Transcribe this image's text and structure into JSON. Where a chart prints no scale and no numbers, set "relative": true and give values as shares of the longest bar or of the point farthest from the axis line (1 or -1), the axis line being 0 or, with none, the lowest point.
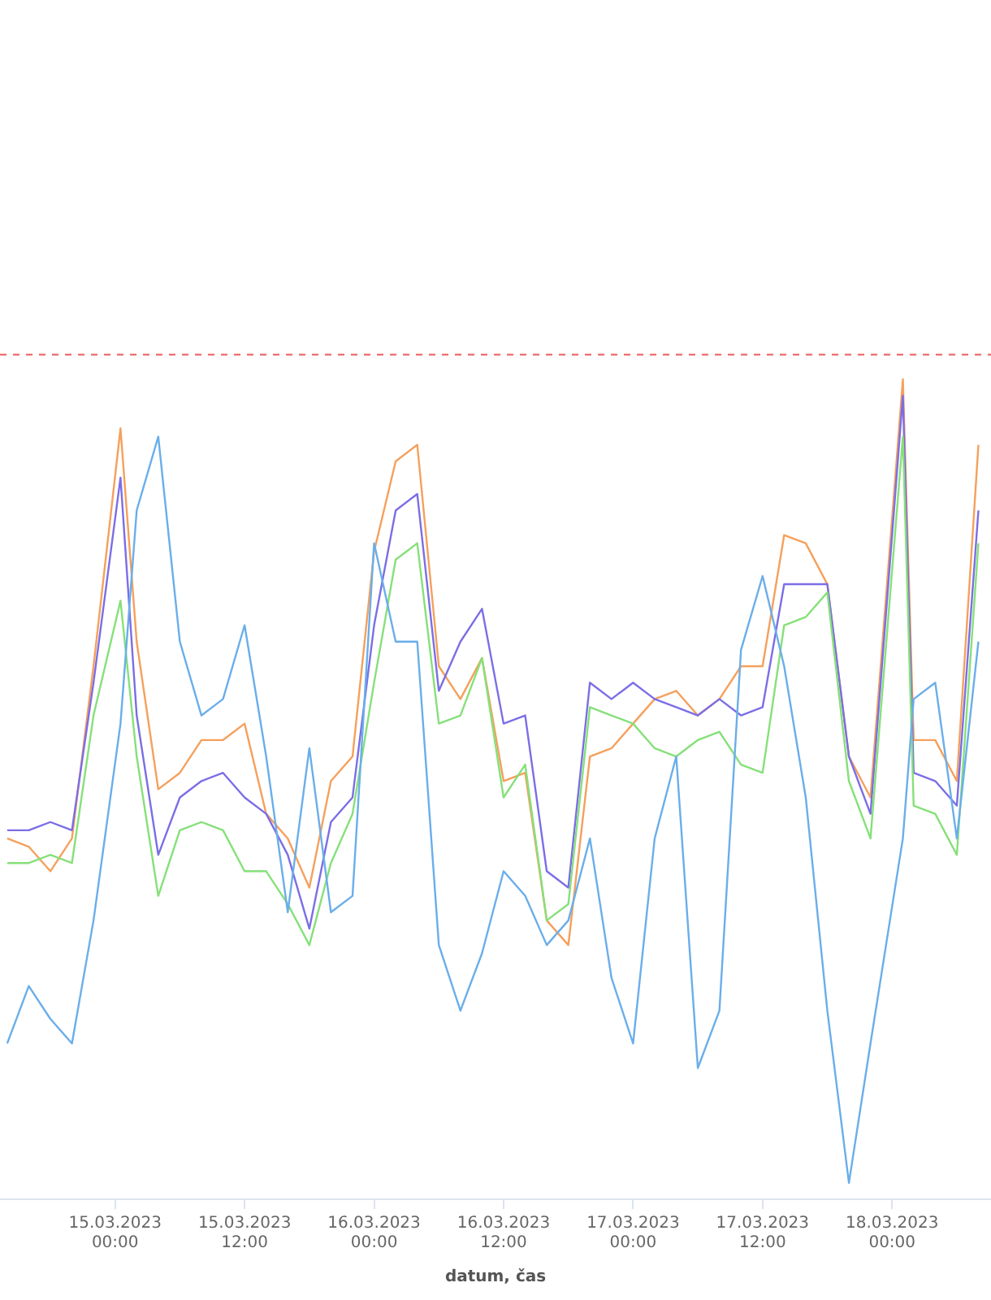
{
  "chart_data": {
    "type": "line",
    "xlabel": "datum, čas",
    "relative": true,
    "marker": "none",
    "x": [
      "2023-03-14T14:00",
      "2023-03-14T16:00",
      "2023-03-14T18:00",
      "2023-03-14T20:00",
      "2023-03-14T22:00",
      "2023-03-15T00:30",
      "2023-03-15T02:00",
      "2023-03-15T04:00",
      "2023-03-15T06:00",
      "2023-03-15T08:00",
      "2023-03-15T10:00",
      "2023-03-15T12:00",
      "2023-03-15T14:00",
      "2023-03-15T16:00",
      "2023-03-15T18:00",
      "2023-03-15T20:00",
      "2023-03-15T22:00",
      "2023-03-16T00:00",
      "2023-03-16T02:00",
      "2023-03-16T04:00",
      "2023-03-16T06:00",
      "2023-03-16T08:00",
      "2023-03-16T10:00",
      "2023-03-16T12:00",
      "2023-03-16T14:00",
      "2023-03-16T16:00",
      "2023-03-16T18:00",
      "2023-03-16T20:00",
      "2023-03-16T22:00",
      "2023-03-17T00:00",
      "2023-03-17T02:00",
      "2023-03-17T04:00",
      "2023-03-17T06:00",
      "2023-03-17T08:00",
      "2023-03-17T10:00",
      "2023-03-17T12:00",
      "2023-03-17T14:00",
      "2023-03-17T16:00",
      "2023-03-17T18:00",
      "2023-03-17T20:00",
      "2023-03-17T22:00",
      "2023-03-18T01:00",
      "2023-03-18T02:00",
      "2023-03-18T04:00",
      "2023-03-18T06:00",
      "2023-03-18T08:00"
    ],
    "xlim": [
      "2023-03-14T13:20",
      "2023-03-18T09:10"
    ],
    "xticks": [
      {
        "value": "2023-03-15T00:00",
        "label": "15.03.2023 00:00"
      },
      {
        "value": "2023-03-15T12:00",
        "label": "15.03.2023 12:00"
      },
      {
        "value": "2023-03-16T00:00",
        "label": "16.03.2023 00:00"
      },
      {
        "value": "2023-03-16T12:00",
        "label": "16.03.2023 12:00"
      },
      {
        "value": "2023-03-17T00:00",
        "label": "17.03.2023 00:00"
      },
      {
        "value": "2023-03-17T12:00",
        "label": "17.03.2023 12:00"
      },
      {
        "value": "2023-03-18T00:00",
        "label": "18.03.2023 00:00"
      }
    ],
    "series": [
      {
        "color": "#6aaeea",
        "values": [
          0.19,
          0.26,
          0.22,
          0.19,
          0.34,
          0.58,
          0.84,
          0.93,
          0.68,
          0.59,
          0.61,
          0.7,
          0.54,
          0.35,
          0.55,
          0.35,
          0.37,
          0.8,
          0.68,
          0.68,
          0.31,
          0.23,
          0.3,
          0.4,
          0.37,
          0.31,
          0.34,
          0.44,
          0.27,
          0.19,
          0.44,
          0.54,
          0.16,
          0.23,
          0.67,
          0.76,
          0.65,
          0.49,
          0.23,
          0.02,
          0.19,
          0.44,
          0.61,
          0.63,
          0.44,
          0.68
        ]
      },
      {
        "color": "#86e07a",
        "values": [
          0.41,
          0.41,
          0.42,
          0.41,
          0.59,
          0.73,
          0.54,
          0.37,
          0.45,
          0.46,
          0.45,
          0.4,
          0.4,
          0.36,
          0.31,
          0.41,
          0.47,
          0.63,
          0.78,
          0.8,
          0.58,
          0.59,
          0.66,
          0.49,
          0.53,
          0.34,
          0.36,
          0.6,
          0.59,
          0.58,
          0.55,
          0.54,
          0.56,
          0.57,
          0.53,
          0.52,
          0.7,
          0.71,
          0.74,
          0.51,
          0.44,
          0.93,
          0.48,
          0.47,
          0.42,
          0.8
        ]
      },
      {
        "color": "#7b6ee6",
        "values": [
          0.45,
          0.45,
          0.46,
          0.45,
          0.63,
          0.88,
          0.59,
          0.42,
          0.49,
          0.51,
          0.52,
          0.49,
          0.47,
          0.42,
          0.33,
          0.46,
          0.49,
          0.7,
          0.84,
          0.86,
          0.62,
          0.68,
          0.72,
          0.58,
          0.59,
          0.4,
          0.38,
          0.63,
          0.61,
          0.63,
          0.61,
          0.6,
          0.59,
          0.61,
          0.59,
          0.6,
          0.75,
          0.75,
          0.75,
          0.54,
          0.47,
          0.98,
          0.52,
          0.51,
          0.48,
          0.84
        ]
      },
      {
        "color": "#f5a05c",
        "values": [
          0.44,
          0.43,
          0.4,
          0.44,
          0.65,
          0.94,
          0.68,
          0.5,
          0.52,
          0.56,
          0.56,
          0.58,
          0.47,
          0.44,
          0.38,
          0.51,
          0.54,
          0.79,
          0.9,
          0.92,
          0.65,
          0.61,
          0.66,
          0.51,
          0.52,
          0.34,
          0.31,
          0.54,
          0.55,
          0.58,
          0.61,
          0.62,
          0.59,
          0.61,
          0.65,
          0.65,
          0.81,
          0.8,
          0.75,
          0.54,
          0.49,
          1.0,
          0.56,
          0.56,
          0.51,
          0.92
        ]
      }
    ],
    "ref_lines": [
      {
        "axis": "y",
        "value": 1.03,
        "color": "#ee5a5a",
        "line_style": "dashed"
      }
    ]
  }
}
